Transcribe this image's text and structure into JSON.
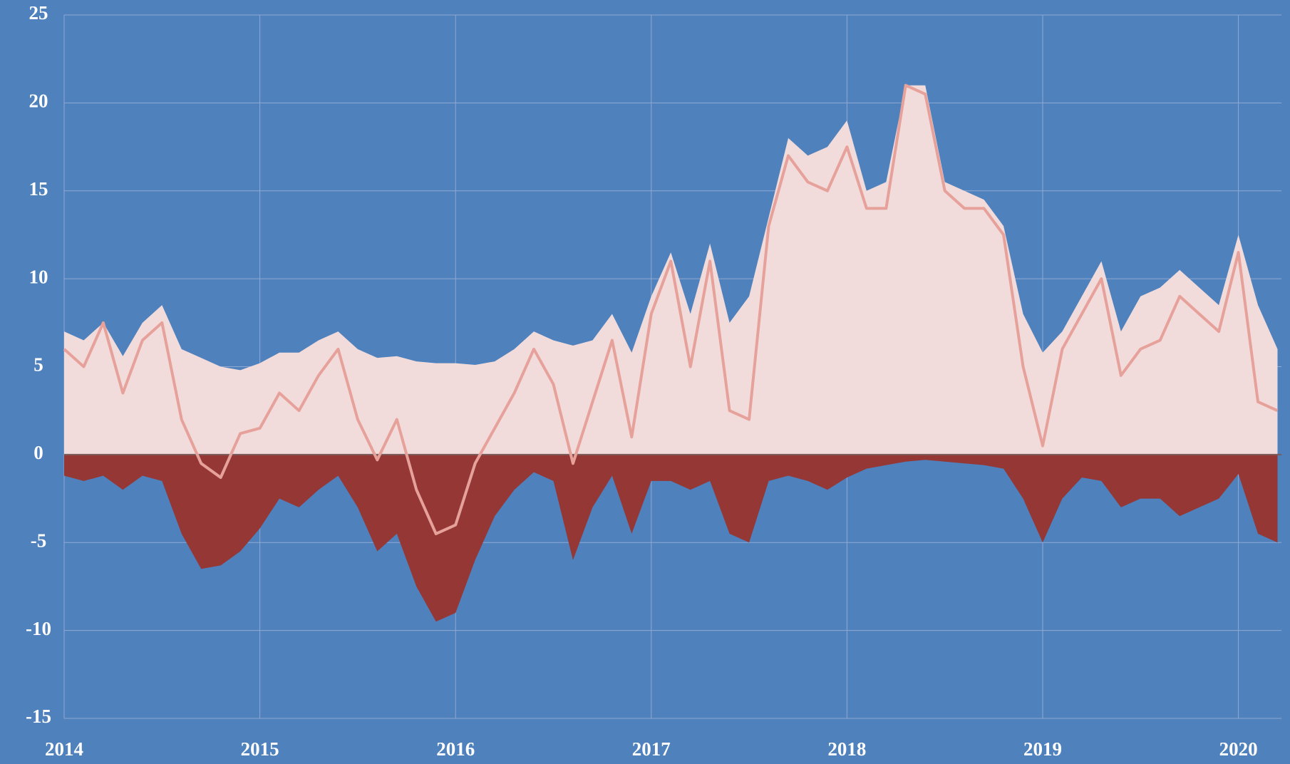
{
  "chart_data": {
    "type": "area",
    "x": [
      2014.0,
      2014.1,
      2014.2,
      2014.3,
      2014.4,
      2014.5,
      2014.6,
      2014.7,
      2014.8,
      2014.9,
      2015.0,
      2015.1,
      2015.2,
      2015.3,
      2015.4,
      2015.5,
      2015.6,
      2015.7,
      2015.8,
      2015.9,
      2016.0,
      2016.1,
      2016.2,
      2016.3,
      2016.4,
      2016.5,
      2016.6,
      2016.7,
      2016.8,
      2016.9,
      2017.0,
      2017.1,
      2017.2,
      2017.3,
      2017.4,
      2017.5,
      2017.6,
      2017.7,
      2017.8,
      2017.9,
      2018.0,
      2018.1,
      2018.2,
      2018.3,
      2018.4,
      2018.5,
      2018.6,
      2018.7,
      2018.8,
      2018.9,
      2019.0,
      2019.1,
      2019.2,
      2019.3,
      2019.4,
      2019.5,
      2019.6,
      2019.7,
      2019.8,
      2019.9,
      2020.0,
      2020.1,
      2020.2
    ],
    "series": [
      {
        "type": "area",
        "color": "#f2dcdb",
        "values": [
          7,
          6.5,
          7.5,
          5.6,
          7.5,
          8.5,
          6,
          5.5,
          5,
          4.8,
          5.2,
          5.8,
          5.8,
          6.5,
          7,
          6,
          5.5,
          5.6,
          5.3,
          5.2,
          5.2,
          5.1,
          5.3,
          6,
          7,
          6.5,
          6.2,
          6.5,
          8,
          5.8,
          9,
          11.5,
          8,
          12,
          7.5,
          9,
          13.5,
          18,
          17,
          17.5,
          19,
          15,
          15.5,
          21,
          21,
          15.5,
          15,
          14.5,
          13,
          8,
          5.8,
          7,
          9,
          11,
          7,
          9,
          9.5,
          10.5,
          9.5,
          8.5,
          12.5,
          8.5,
          6
        ]
      },
      {
        "type": "area",
        "color": "#953735",
        "values": [
          -1.2,
          -1.5,
          -1.2,
          -2,
          -1.2,
          -1.5,
          -4.5,
          -6.5,
          -6.3,
          -5.5,
          -4.2,
          -2.5,
          -3,
          -2,
          -1.2,
          -3,
          -5.5,
          -4.5,
          -7.5,
          -9.5,
          -9,
          -6,
          -3.5,
          -2,
          -1,
          -1.5,
          -6,
          -3,
          -1.2,
          -4.5,
          -1.5,
          -1.5,
          -2,
          -1.5,
          -4.5,
          -5,
          -1.5,
          -1.2,
          -1.5,
          -2,
          -1.3,
          -0.8,
          -0.6,
          -0.4,
          -0.3,
          -0.4,
          -0.5,
          -0.6,
          -0.8,
          -2.5,
          -5,
          -2.5,
          -1.3,
          -1.5,
          -3,
          -2.5,
          -2.5,
          -3.5,
          -3,
          -2.5,
          -1.1,
          -4.5,
          -5
        ]
      },
      {
        "type": "line",
        "color": "#e6a19b",
        "values": [
          6,
          5,
          7.5,
          3.5,
          6.5,
          7.5,
          2,
          -0.5,
          -1.3,
          1.2,
          1.5,
          3.5,
          2.5,
          4.5,
          6,
          2,
          -0.3,
          2,
          -2,
          -4.5,
          -4,
          -0.5,
          1.5,
          3.5,
          6,
          4,
          -0.5,
          3,
          6.5,
          1,
          8,
          11,
          5,
          11,
          2.5,
          2,
          13,
          17,
          15.5,
          15,
          17.5,
          14,
          14,
          21,
          20.5,
          15,
          14,
          14,
          12.5,
          5,
          0.5,
          6,
          8,
          10,
          4.5,
          6,
          6.5,
          9,
          8,
          7,
          11.5,
          3,
          2.5
        ]
      }
    ],
    "xlim": [
      2014,
      2020.22
    ],
    "xticks": [
      2014,
      2015,
      2016,
      2017,
      2018,
      2019,
      2020
    ],
    "ylim": [
      -15,
      25
    ],
    "yticks": [
      -15,
      -10,
      -5,
      0,
      5,
      10,
      15,
      20,
      25
    ],
    "grid": true
  }
}
